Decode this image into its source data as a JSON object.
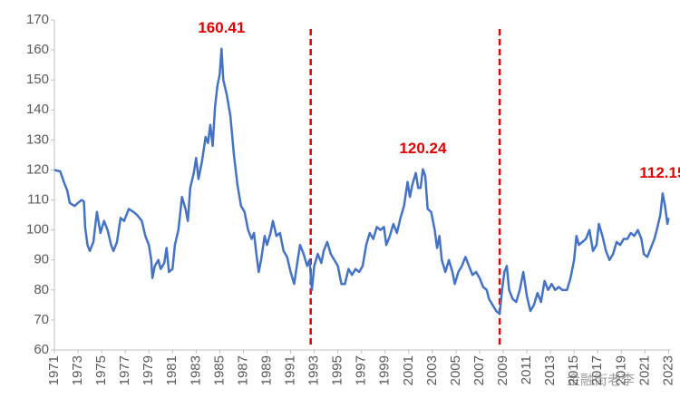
{
  "chart_data": {
    "type": "line",
    "x": [
      1971.0,
      1971.5,
      1971.8,
      1972.1,
      1972.3,
      1972.7,
      1973.0,
      1973.3,
      1973.5,
      1973.6,
      1973.8,
      1974.0,
      1974.3,
      1974.6,
      1974.9,
      1975.2,
      1975.5,
      1975.8,
      1976.0,
      1976.3,
      1976.6,
      1976.9,
      1977.3,
      1977.7,
      1978.0,
      1978.4,
      1978.7,
      1979.0,
      1979.2,
      1979.3,
      1979.5,
      1979.8,
      1980.0,
      1980.3,
      1980.5,
      1980.7,
      1981.0,
      1981.2,
      1981.5,
      1981.8,
      1982.1,
      1982.3,
      1982.5,
      1982.8,
      1983.0,
      1983.2,
      1983.5,
      1983.8,
      1984.0,
      1984.2,
      1984.4,
      1984.6,
      1984.8,
      1985.0,
      1985.15,
      1985.3,
      1985.6,
      1985.9,
      1986.2,
      1986.5,
      1986.8,
      1987.1,
      1987.4,
      1987.7,
      1987.9,
      1988.1,
      1988.3,
      1988.5,
      1988.8,
      1989.0,
      1989.3,
      1989.5,
      1989.8,
      1990.1,
      1990.4,
      1990.7,
      1991.0,
      1991.3,
      1991.6,
      1991.8,
      1992.1,
      1992.4,
      1992.6,
      1992.8,
      1993.0,
      1993.3,
      1993.6,
      1993.8,
      1994.1,
      1994.4,
      1994.7,
      1995.0,
      1995.3,
      1995.6,
      1995.9,
      1996.2,
      1996.5,
      1996.8,
      1997.1,
      1997.4,
      1997.7,
      1998.0,
      1998.3,
      1998.6,
      1998.9,
      1999.1,
      1999.4,
      1999.7,
      2000.0,
      2000.3,
      2000.6,
      2000.9,
      2001.1,
      2001.3,
      2001.6,
      2001.8,
      2002.0,
      2002.2,
      2002.4,
      2002.6,
      2002.9,
      2003.2,
      2003.4,
      2003.6,
      2003.8,
      2004.1,
      2004.4,
      2004.7,
      2004.9,
      2005.2,
      2005.5,
      2005.8,
      2006.1,
      2006.4,
      2006.7,
      2007.0,
      2007.3,
      2007.6,
      2007.8,
      2008.1,
      2008.4,
      2008.7,
      2008.9,
      2009.1,
      2009.3,
      2009.5,
      2009.8,
      2010.1,
      2010.4,
      2010.7,
      2011.0,
      2011.3,
      2011.6,
      2011.9,
      2012.2,
      2012.5,
      2012.8,
      2013.1,
      2013.4,
      2013.7,
      2014.0,
      2014.4,
      2014.7,
      2015.0,
      2015.2,
      2015.4,
      2015.7,
      2016.0,
      2016.3,
      2016.6,
      2016.9,
      2017.1,
      2017.4,
      2017.7,
      2018.0,
      2018.3,
      2018.6,
      2018.9,
      2019.2,
      2019.5,
      2019.8,
      2020.1,
      2020.4,
      2020.7,
      2020.9,
      2021.2,
      2021.5,
      2021.8,
      2022.0,
      2022.3,
      2022.5,
      2022.7,
      2022.9,
      2023.0
    ],
    "values": [
      120,
      119.5,
      116,
      113,
      109,
      108,
      109,
      110,
      109.5,
      101,
      95,
      93,
      96,
      106,
      99,
      103,
      100,
      95,
      93,
      96,
      104,
      103,
      107,
      106,
      105,
      103,
      98,
      95,
      90,
      84,
      88,
      90,
      87,
      89,
      94,
      86,
      87,
      95,
      100,
      111,
      107,
      103,
      114,
      119,
      124,
      117,
      123,
      131,
      129,
      135,
      128,
      141,
      148,
      152,
      160.41,
      150,
      145,
      138,
      125,
      115,
      108,
      106,
      100,
      97,
      99,
      92,
      86,
      90,
      98,
      95,
      99,
      103,
      98,
      99,
      93,
      91,
      86,
      82,
      90,
      95,
      92,
      88,
      90,
      80,
      88,
      92,
      89,
      93,
      96,
      92,
      90,
      88,
      82,
      82,
      87,
      85,
      87,
      86,
      88,
      95,
      99,
      97,
      101,
      100,
      101,
      95,
      98,
      102,
      99,
      104,
      108,
      116,
      111,
      115,
      119,
      114,
      114,
      120.24,
      118,
      107,
      106,
      100,
      94,
      98,
      90,
      86,
      90,
      86,
      82,
      86,
      88,
      91,
      88,
      85,
      86,
      84,
      81,
      80,
      77,
      75,
      73,
      72,
      80,
      86,
      88,
      80,
      77,
      76,
      80,
      86,
      78,
      73,
      75,
      79,
      76,
      83,
      80,
      82,
      80,
      81,
      80,
      80,
      84,
      90,
      98,
      95,
      96,
      97,
      100,
      93,
      95,
      102,
      98,
      93,
      90,
      92,
      96,
      95,
      97,
      97,
      99,
      98,
      100,
      97,
      92,
      91,
      94,
      97,
      100,
      105,
      112.15,
      108,
      102,
      104
    ],
    "color": "#4472c4",
    "xlim": [
      1971,
      2023.2
    ],
    "xticks": [
      1971,
      1973,
      1975,
      1977,
      1979,
      1981,
      1983,
      1985,
      1987,
      1989,
      1991,
      1993,
      1995,
      1997,
      1999,
      2001,
      2003,
      2005,
      2007,
      2009,
      2011,
      2013,
      2015,
      2017,
      2019,
      2021,
      2023
    ],
    "ylim": [
      60,
      170
    ],
    "yticks": [
      60,
      70,
      80,
      90,
      100,
      110,
      120,
      130,
      140,
      150,
      160,
      170
    ],
    "annotations": [
      {
        "text": "160.41",
        "x": 1985.15,
        "y": 160.41
      },
      {
        "text": "120.24",
        "x": 2002.2,
        "y": 120.24
      },
      {
        "text": "112.15",
        "x": 2022.5,
        "y": 112.15
      }
    ],
    "vlines": [
      {
        "x": 1992.7,
        "color": "#e00000"
      },
      {
        "x": 2008.7,
        "color": "#e00000"
      }
    ],
    "watermark": "金融街老李"
  }
}
